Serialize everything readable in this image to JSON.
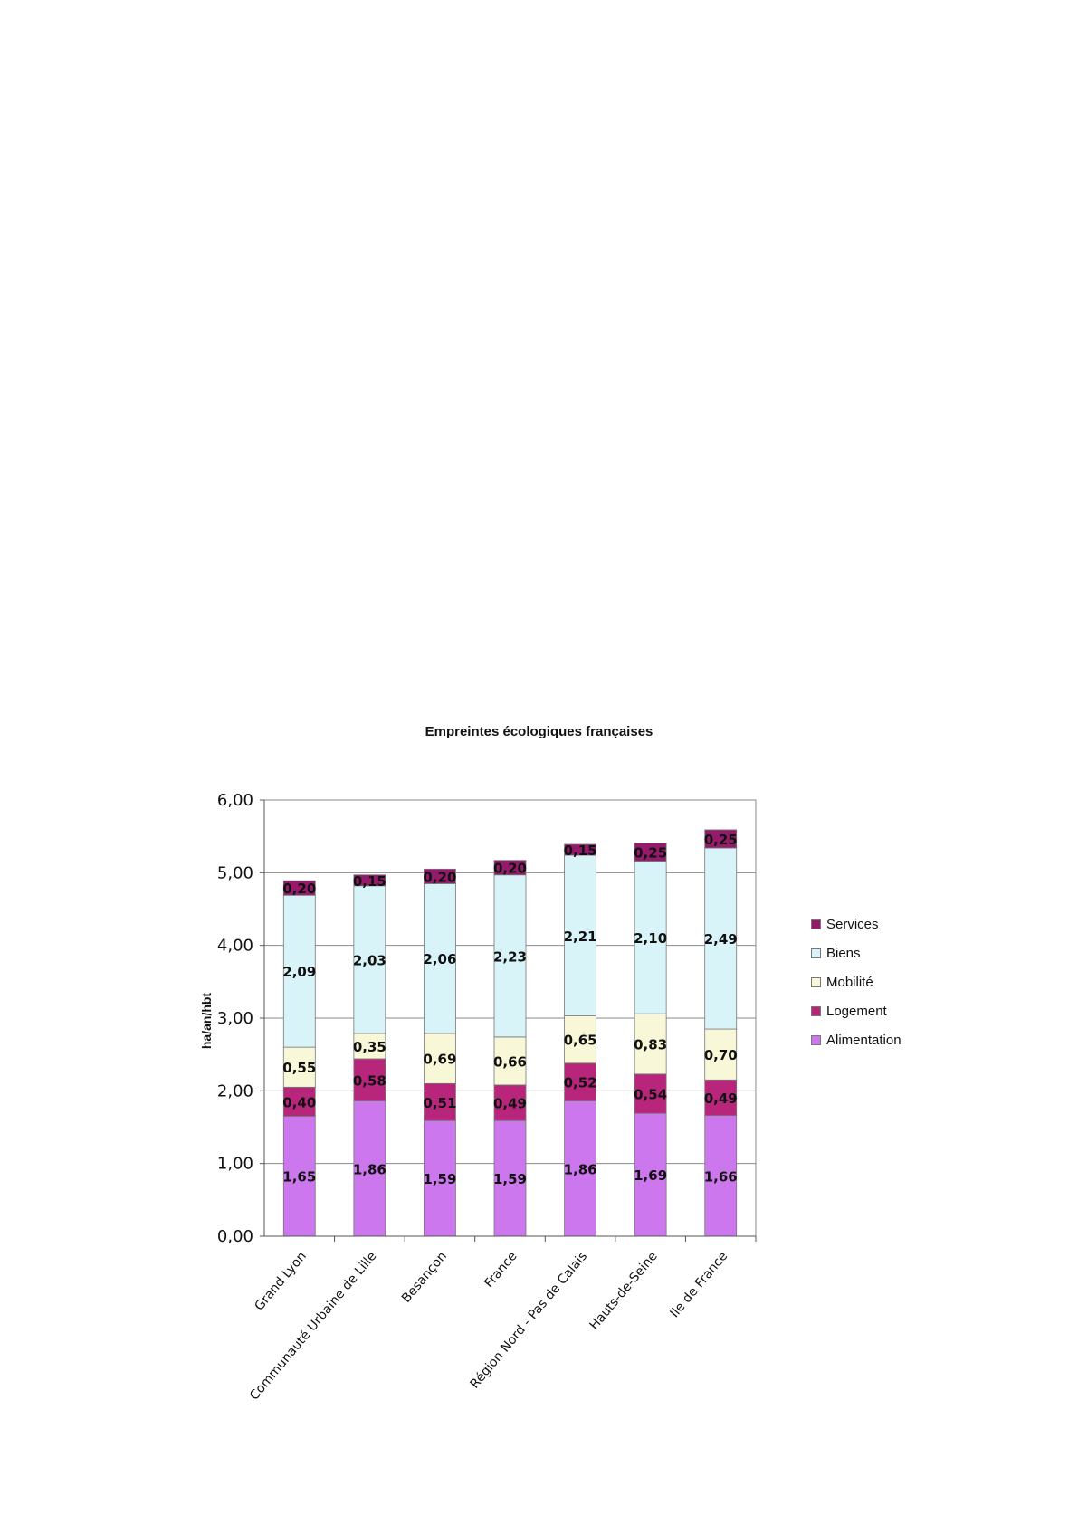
{
  "chart_data": {
    "type": "bar",
    "stacked": true,
    "title": "Empreintes écologiques françaises",
    "xlabel": "",
    "ylabel": "ha/an/hbt",
    "ylim": [
      0,
      6
    ],
    "yticks": [
      "0,00",
      "1,00",
      "2,00",
      "3,00",
      "4,00",
      "5,00",
      "6,00"
    ],
    "grid": true,
    "legend_position": "right",
    "categories": [
      "Grand Lyon",
      "Communauté Urbaine de Lille",
      "Besançon",
      "France",
      "Région Nord - Pas de Calais",
      "Hauts-de-Seine",
      "Ile de France"
    ],
    "series": [
      {
        "name": "Alimentation",
        "color": "#cc77ee",
        "values": [
          1.65,
          1.86,
          1.59,
          1.59,
          1.86,
          1.69,
          1.66
        ],
        "labels": [
          "1,65",
          "1,86",
          "1,59",
          "1,59",
          "1,86",
          "1,69",
          "1,66"
        ]
      },
      {
        "name": "Logement",
        "color": "#b8267c",
        "values": [
          0.4,
          0.58,
          0.51,
          0.49,
          0.52,
          0.54,
          0.49
        ],
        "labels": [
          "0,40",
          "0,58",
          "0,51",
          "0,49",
          "0,52",
          "0,54",
          "0,49"
        ]
      },
      {
        "name": "Mobilité",
        "color": "#f8f8d8",
        "values": [
          0.55,
          0.35,
          0.69,
          0.66,
          0.65,
          0.83,
          0.7
        ],
        "labels": [
          "0,55",
          "0,35",
          "0,69",
          "0,66",
          "0,65",
          "0,83",
          "0,70"
        ]
      },
      {
        "name": "Biens",
        "color": "#d8f4f8",
        "values": [
          2.09,
          2.03,
          2.06,
          2.23,
          2.21,
          2.1,
          2.49
        ],
        "labels": [
          "2,09",
          "2,03",
          "2,06",
          "2,23",
          "2,21",
          "2,10",
          "2,49"
        ]
      },
      {
        "name": "Services",
        "color": "#951a6c",
        "values": [
          0.2,
          0.15,
          0.2,
          0.2,
          0.15,
          0.25,
          0.25
        ],
        "labels": [
          "0,20",
          "0,15",
          "0,20",
          "0,20",
          "0,15",
          "0,25",
          "0,25"
        ]
      }
    ]
  }
}
